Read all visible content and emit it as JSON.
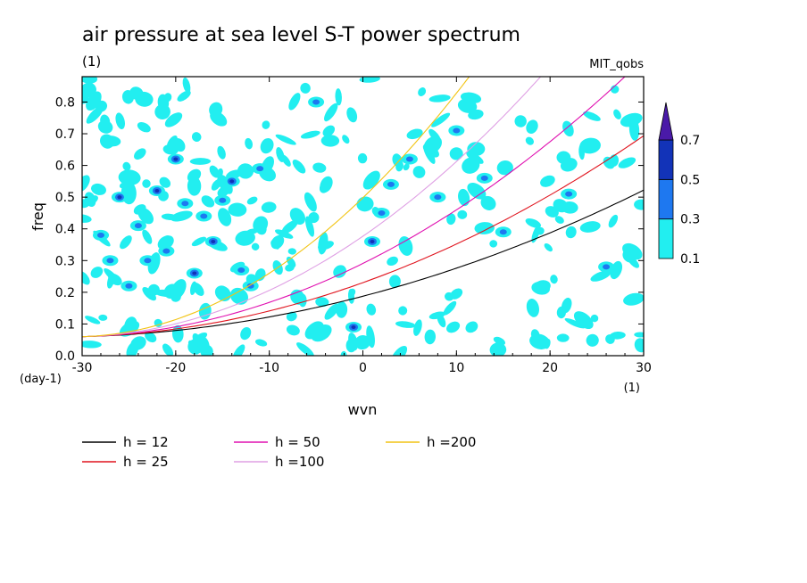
{
  "chart_data": {
    "type": "heatmap",
    "title": "air pressure at sea level S-T power spectrum",
    "units": "(1)",
    "source": "MIT_qobs",
    "xlabel": "wvn",
    "ylabel": "freq",
    "x_units": "(1)",
    "y_units": "(day-1)",
    "xlim": [
      -30,
      30
    ],
    "ylim": [
      0,
      0.88
    ],
    "x_ticks": [
      "-30",
      "-20",
      "-10",
      "0",
      "10",
      "20",
      "30"
    ],
    "x_tick_values": [
      -30,
      -20,
      -10,
      0,
      10,
      20,
      30
    ],
    "y_ticks": [
      "0.0",
      "0.1",
      "0.2",
      "0.3",
      "0.4",
      "0.5",
      "0.6",
      "0.7",
      "0.8"
    ],
    "y_tick_values": [
      0,
      0.1,
      0.2,
      0.3,
      0.4,
      0.5,
      0.6,
      0.7,
      0.8
    ],
    "contour_levels": [
      "0.1",
      "0.3",
      "0.5",
      "0.7"
    ],
    "level_values": [
      0.1,
      0.3,
      0.5,
      0.7
    ],
    "level_colors": [
      "#22eef0",
      "#1e78f0",
      "#1233b8",
      "#4a1aa8"
    ],
    "patches": [
      {
        "x": -28,
        "y": 0.38,
        "level": 0.3
      },
      {
        "x": -26,
        "y": 0.5,
        "level": 0.5
      },
      {
        "x": -24,
        "y": 0.41,
        "level": 0.3
      },
      {
        "x": -22,
        "y": 0.52,
        "level": 0.5
      },
      {
        "x": -21,
        "y": 0.33,
        "level": 0.3
      },
      {
        "x": -20,
        "y": 0.62,
        "level": 0.5
      },
      {
        "x": -18,
        "y": 0.26,
        "level": 0.5
      },
      {
        "x": -17,
        "y": 0.44,
        "level": 0.3
      },
      {
        "x": -16,
        "y": 0.36,
        "level": 0.5
      },
      {
        "x": -15,
        "y": 0.49,
        "level": 0.3
      },
      {
        "x": -14,
        "y": 0.55,
        "level": 0.5
      },
      {
        "x": -13,
        "y": 0.27,
        "level": 0.3
      },
      {
        "x": -25,
        "y": 0.22,
        "level": 0.3
      },
      {
        "x": -23,
        "y": 0.3,
        "level": 0.3
      },
      {
        "x": -19,
        "y": 0.48,
        "level": 0.3
      },
      {
        "x": -11,
        "y": 0.59,
        "level": 0.3
      },
      {
        "x": -27,
        "y": 0.3,
        "level": 0.3
      },
      {
        "x": -12,
        "y": 0.22,
        "level": 0.3
      },
      {
        "x": -1,
        "y": 0.09,
        "level": 0.5
      },
      {
        "x": 1,
        "y": 0.36,
        "level": 0.5
      },
      {
        "x": 2,
        "y": 0.45,
        "level": 0.3
      },
      {
        "x": 3,
        "y": 0.54,
        "level": 0.3
      },
      {
        "x": 8,
        "y": 0.5,
        "level": 0.3
      },
      {
        "x": 13,
        "y": 0.56,
        "level": 0.3
      },
      {
        "x": 22,
        "y": 0.51,
        "level": 0.3
      },
      {
        "x": 26,
        "y": 0.28,
        "level": 0.3
      },
      {
        "x": 5,
        "y": 0.62,
        "level": 0.3
      },
      {
        "x": 10,
        "y": 0.71,
        "level": 0.3
      },
      {
        "x": -5,
        "y": 0.8,
        "level": 0.3
      },
      {
        "x": 15,
        "y": 0.39,
        "level": 0.3
      }
    ],
    "series": [
      {
        "name": "h = 12",
        "color": "#000000",
        "h": 12
      },
      {
        "name": "h = 25",
        "color": "#e0141e",
        "h": 25
      },
      {
        "name": "h = 50",
        "color": "#e010b0",
        "h": 50
      },
      {
        "name": "h =100",
        "color": "#dfa0e4",
        "h": 100
      },
      {
        "name": "h =200",
        "color": "#f2c414",
        "h": 200
      }
    ]
  }
}
